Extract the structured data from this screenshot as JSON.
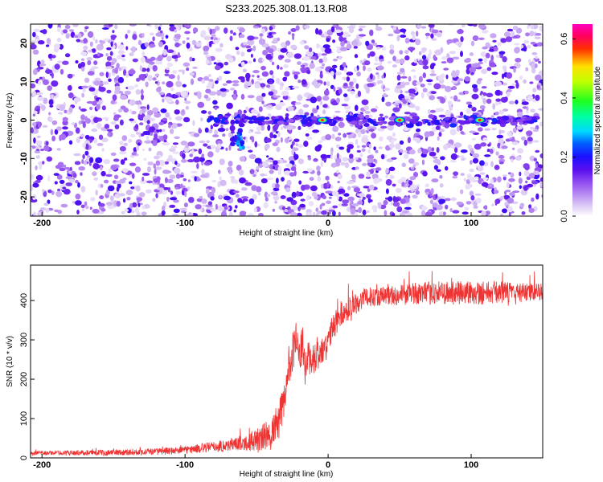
{
  "figure": {
    "title": "S233.2025.308.01.13.R08"
  },
  "chart_data": [
    {
      "type": "heatmap",
      "xlabel": "Height of straight line (km)",
      "ylabel": "Frequency (Hz)",
      "xlim": [
        -208,
        150
      ],
      "ylim": [
        -25,
        25
      ],
      "x_ticks": [
        -200,
        -100,
        0,
        100
      ],
      "y_ticks": [
        20,
        10,
        0,
        -10,
        -20
      ],
      "colorbar": {
        "label": "Normalized spectral amplitude",
        "range": [
          0.0,
          0.65
        ],
        "ticks": [
          0.0,
          0.2,
          0.4,
          0.6
        ],
        "colormap": [
          "#ffffff",
          "#c8a8f0",
          "#7a2de8",
          "#2200ff",
          "#00e0ff",
          "#00ff40",
          "#e8ff00",
          "#ff0000",
          "#ff00a0"
        ]
      },
      "description_features": {
        "background": "scattered speckle, amplitude ~0.05-0.15",
        "horizontal_band_at_frequency": 0,
        "band_x_range": [
          -85,
          150
        ],
        "offset_cluster": {
          "x": -62,
          "frequency": -5
        },
        "peaks": [
          {
            "x": -4,
            "frequency": 0,
            "amplitude": 0.6
          },
          {
            "x": 50,
            "frequency": 0,
            "amplitude": 0.6
          },
          {
            "x": 106,
            "frequency": 0,
            "amplitude": 0.6
          }
        ]
      }
    },
    {
      "type": "line",
      "xlabel": "Height of straight line (km)",
      "ylabel": "SNR (10 * v/v)",
      "xlim": [
        -208,
        150
      ],
      "ylim": [
        0,
        490
      ],
      "x_ticks": [
        -200,
        -100,
        0,
        100
      ],
      "y_ticks": [
        0,
        100,
        200,
        300,
        400
      ],
      "series": [
        {
          "color": "#ee3333",
          "x": [
            -208,
            -190,
            -170,
            -150,
            -130,
            -115,
            -100,
            -90,
            -80,
            -70,
            -60,
            -50,
            -40,
            -35,
            -30,
            -28,
            -25,
            -22,
            -20,
            -18,
            -16,
            -14,
            -12,
            -10,
            -8,
            -6,
            -4,
            -2,
            0,
            2,
            5,
            8,
            12,
            16,
            20,
            25,
            30,
            40,
            50,
            60,
            70,
            80,
            90,
            100,
            110,
            120,
            130,
            140,
            150
          ],
          "values": [
            12,
            13,
            13,
            14,
            15,
            17,
            20,
            24,
            28,
            32,
            38,
            45,
            60,
            90,
            150,
            230,
            270,
            300,
            245,
            300,
            215,
            270,
            240,
            245,
            275,
            255,
            275,
            265,
            300,
            320,
            340,
            365,
            370,
            385,
            395,
            405,
            410,
            412,
            414,
            418,
            418,
            420,
            418,
            422,
            420,
            422,
            420,
            420,
            422
          ]
        }
      ],
      "noise_amplitude_profile": [
        {
          "x": -208,
          "amp": 8
        },
        {
          "x": -100,
          "amp": 16
        },
        {
          "x": -60,
          "amp": 30
        },
        {
          "x": -30,
          "amp": 90
        },
        {
          "x": 0,
          "amp": 60
        },
        {
          "x": 30,
          "amp": 40
        },
        {
          "x": 100,
          "amp": 55
        },
        {
          "x": 150,
          "amp": 35
        }
      ]
    }
  ]
}
